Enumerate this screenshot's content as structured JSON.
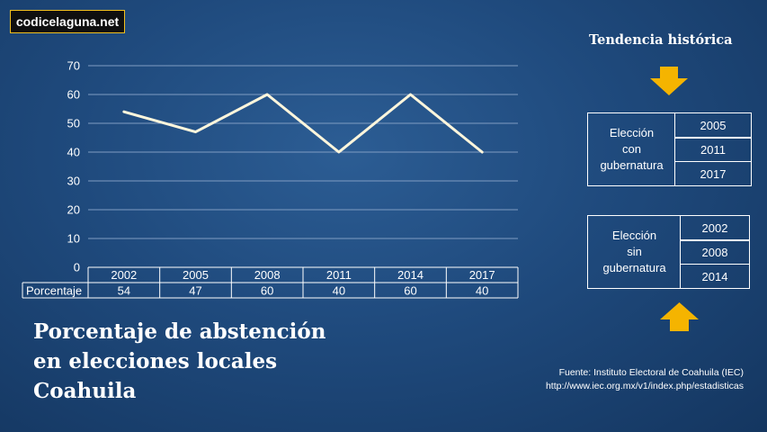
{
  "brand": "codicelaguna.net",
  "chart_data": {
    "type": "line",
    "categories": [
      "2002",
      "2005",
      "2008",
      "2011",
      "2014",
      "2017"
    ],
    "series": [
      {
        "name": "Porcentaje",
        "values": [
          54,
          47,
          60,
          40,
          60,
          40
        ]
      }
    ],
    "ylim": [
      0,
      70
    ],
    "yticks": [
      0,
      10,
      20,
      30,
      40,
      50,
      60,
      70
    ],
    "grid": true,
    "data_table": true,
    "line_color": "#fff6dc"
  },
  "title_lines": [
    "Porcentaje de abstención",
    "en elecciones locales",
    "Coahuila"
  ],
  "trend": {
    "title": "Tendencia histórica",
    "con": {
      "label": "Elección\ncon\ngubernatura",
      "years": [
        "2005",
        "2011",
        "2017"
      ]
    },
    "sin": {
      "label": "Elección\nsin\ngubernatura",
      "years": [
        "2002",
        "2008",
        "2014"
      ]
    }
  },
  "source": {
    "line1": "Fuente: Instituto Electoral de Coahuila (IEC)",
    "line2": "http://www.iec.org.mx/v1/index.php/estadisticas"
  },
  "arrow_color": "#f5b400"
}
